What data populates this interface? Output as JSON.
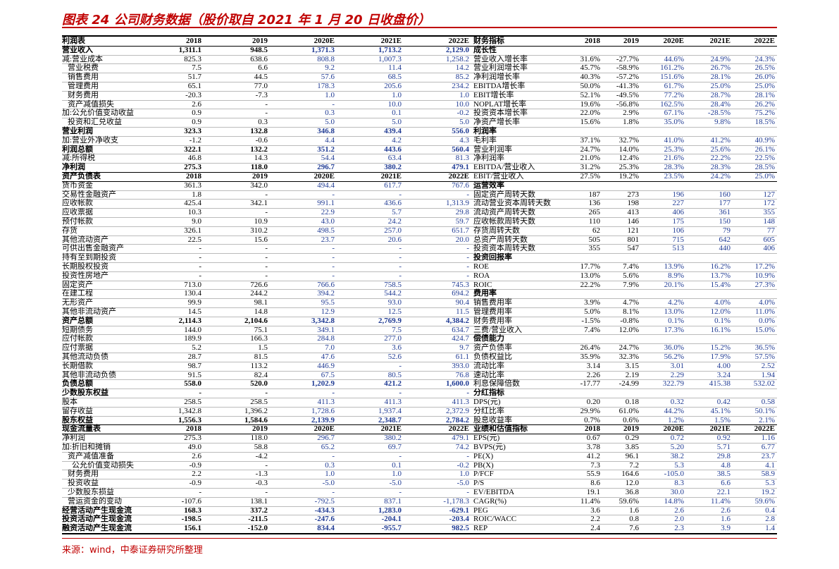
{
  "header": {
    "title": "图表 24 公司财务数据（股价取自 2021 年 1 月 20 日收盘价）"
  },
  "table": {
    "rows": [
      {
        "left": [
          "利润表",
          "2018",
          "2019",
          "2020E",
          "2021E",
          "2022E"
        ],
        "right": [
          "财务指标",
          "2018",
          "2019",
          "2020E",
          "2021E",
          "2022E"
        ]
      },
      {
        "left": [
          "营业收入",
          "1,311.1",
          "948.5",
          "1,371.3",
          "1,713.2",
          "2,129.0"
        ],
        "right": [
          "成长性"
        ]
      },
      {
        "left": [
          "减:营业成本",
          "825.3",
          "638.6",
          "808.8",
          "1,007.3",
          "1,258.2"
        ],
        "right": [
          "营业收入增长率",
          "31.6%",
          "-27.7%",
          "44.6%",
          "24.9%",
          "24.3%"
        ]
      },
      {
        "left": [
          "营业税费",
          "7.5",
          "6.6",
          "9.2",
          "11.4",
          "14.2"
        ],
        "right": [
          "营业利润增长率",
          "45.7%",
          "-58.9%",
          "161.2%",
          "26.7%",
          "26.5%"
        ]
      },
      {
        "left": [
          "销售费用",
          "51.7",
          "44.5",
          "57.6",
          "68.5",
          "85.2"
        ],
        "right": [
          "净利润增长率",
          "40.3%",
          "-57.2%",
          "151.6%",
          "28.1%",
          "26.0%"
        ]
      },
      {
        "left": [
          "管理费用",
          "65.1",
          "77.0",
          "178.3",
          "205.6",
          "234.2"
        ],
        "right": [
          "EBITDA增长率",
          "50.0%",
          "-41.3%",
          "61.7%",
          "25.0%",
          "25.0%"
        ]
      },
      {
        "left": [
          "财务费用",
          "-20.3",
          "-7.3",
          "1.0",
          "1.0",
          "1.0"
        ],
        "right": [
          "EBIT增长率",
          "52.1%",
          "-49.5%",
          "77.2%",
          "28.7%",
          "28.1%"
        ]
      },
      {
        "left": [
          "资产减值损失",
          "2.6",
          "-",
          "-",
          "10.0",
          "10.0"
        ],
        "right": [
          "NOPLAT增长率",
          "19.6%",
          "-56.8%",
          "162.5%",
          "28.4%",
          "26.2%"
        ]
      },
      {
        "left": [
          "加:公允价值变动收益",
          "0.9",
          "-",
          "0.3",
          "0.1",
          "-0.2"
        ],
        "right": [
          "投资资本增长率",
          "22.0%",
          "2.9%",
          "67.1%",
          "-28.5%",
          "75.2%"
        ]
      },
      {
        "left": [
          "投资和汇兑收益",
          "0.9",
          "0.3",
          "5.0",
          "5.0",
          "5.0"
        ],
        "right": [
          "净资产增长率",
          "15.6%",
          "1.8%",
          "35.0%",
          "9.8%",
          "18.5%"
        ]
      },
      {
        "left": [
          "营业利润",
          "323.3",
          "132.8",
          "346.8",
          "439.4",
          "556.0"
        ],
        "right": [
          "利润率"
        ]
      },
      {
        "left": [
          "加:营业外净收支",
          "-1.2",
          "-0.6",
          "4.4",
          "4.2",
          "4.3"
        ],
        "right": [
          "毛利率",
          "37.1%",
          "32.7%",
          "41.0%",
          "41.2%",
          "40.9%"
        ]
      },
      {
        "left": [
          "利润总额",
          "322.1",
          "132.2",
          "351.2",
          "443.6",
          "560.4"
        ],
        "right": [
          "营业利润率",
          "24.7%",
          "14.0%",
          "25.3%",
          "25.6%",
          "26.1%"
        ]
      },
      {
        "left": [
          "减:所得税",
          "46.8",
          "14.3",
          "54.4",
          "63.4",
          "81.3"
        ],
        "right": [
          "净利润率",
          "21.0%",
          "12.4%",
          "21.6%",
          "22.2%",
          "22.5%"
        ]
      },
      {
        "left": [
          "净利润",
          "275.3",
          "118.0",
          "296.7",
          "380.2",
          "479.1"
        ],
        "right": [
          "EBITDA/营业收入",
          "31.2%",
          "25.3%",
          "28.3%",
          "28.3%",
          "28.5%"
        ]
      },
      {
        "left": [
          "资产负债表",
          "2018",
          "2019",
          "2020E",
          "2021E",
          "2022E"
        ],
        "right": [
          "EBIT/营业收入",
          "27.5%",
          "19.2%",
          "23.5%",
          "24.2%",
          "25.0%"
        ]
      },
      {
        "left": [
          "货币资金",
          "361.3",
          "342.0",
          "494.4",
          "617.7",
          "767.6"
        ],
        "right": [
          "运营效率"
        ]
      },
      {
        "left": [
          "交易性金融资产",
          "1.8",
          "-",
          "-",
          "-",
          "-"
        ],
        "right": [
          "固定资产周转天数",
          "187",
          "273",
          "196",
          "160",
          "127"
        ]
      },
      {
        "left": [
          "应收帐款",
          "425.4",
          "342.1",
          "991.1",
          "436.6",
          "1,313.9"
        ],
        "right": [
          "流动营业资本周转天数",
          "136",
          "198",
          "227",
          "177",
          "172"
        ]
      },
      {
        "left": [
          "应收票据",
          "10.3",
          "-",
          "22.9",
          "5.7",
          "29.8"
        ],
        "right": [
          "流动资产周转天数",
          "265",
          "413",
          "406",
          "361",
          "355"
        ]
      },
      {
        "left": [
          "预付帐款",
          "9.0",
          "10.9",
          "43.0",
          "24.2",
          "59.7"
        ],
        "right": [
          "应收帐款周转天数",
          "110",
          "146",
          "175",
          "150",
          "148"
        ]
      },
      {
        "left": [
          "存货",
          "326.1",
          "310.2",
          "498.5",
          "257.0",
          "651.7"
        ],
        "right": [
          "存货周转天数",
          "62",
          "121",
          "106",
          "79",
          "77"
        ]
      },
      {
        "left": [
          "其他流动资产",
          "22.5",
          "15.6",
          "23.7",
          "20.6",
          "20.0"
        ],
        "right": [
          "总资产周转天数",
          "505",
          "801",
          "715",
          "642",
          "605"
        ]
      },
      {
        "left": [
          "可供出售金融资产",
          "-",
          "-",
          "-",
          "-",
          "-"
        ],
        "right": [
          "投资资本周转天数",
          "355",
          "547",
          "513",
          "440",
          "406"
        ]
      },
      {
        "left": [
          "持有至到期投资",
          "-",
          "-",
          "-",
          "-",
          "-"
        ],
        "right": [
          "投资回报率"
        ]
      },
      {
        "left": [
          "长期股权投资",
          "-",
          "-",
          "-",
          "-",
          "-"
        ],
        "right": [
          "ROE",
          "17.7%",
          "7.4%",
          "13.9%",
          "16.2%",
          "17.2%"
        ]
      },
      {
        "left": [
          "投资性房地产",
          "-",
          "-",
          "-",
          "-",
          "-"
        ],
        "right": [
          "ROA",
          "13.0%",
          "5.6%",
          "8.9%",
          "13.7%",
          "10.9%"
        ]
      },
      {
        "left": [
          "固定资产",
          "713.0",
          "726.6",
          "766.6",
          "758.5",
          "745.3"
        ],
        "right": [
          "ROIC",
          "22.2%",
          "7.9%",
          "20.1%",
          "15.4%",
          "27.3%"
        ]
      },
      {
        "left": [
          "在建工程",
          "130.4",
          "244.2",
          "394.2",
          "544.2",
          "694.2"
        ],
        "right": [
          "费用率"
        ]
      },
      {
        "left": [
          "无形资产",
          "99.9",
          "98.1",
          "95.5",
          "93.0",
          "90.4"
        ],
        "right": [
          "销售费用率",
          "3.9%",
          "4.7%",
          "4.2%",
          "4.0%",
          "4.0%"
        ]
      },
      {
        "left": [
          "其他非流动资产",
          "14.5",
          "14.8",
          "12.9",
          "12.5",
          "11.5"
        ],
        "right": [
          "管理费用率",
          "5.0%",
          "8.1%",
          "13.0%",
          "12.0%",
          "11.0%"
        ]
      },
      {
        "left": [
          "资产总额",
          "2,114.3",
          "2,104.6",
          "3,342.8",
          "2,769.9",
          "4,384.2"
        ],
        "right": [
          "财务费用率",
          "-1.5%",
          "-0.8%",
          "0.1%",
          "0.1%",
          "0.0%"
        ]
      },
      {
        "left": [
          "短期债务",
          "144.0",
          "75.1",
          "349.1",
          "7.5",
          "634.7"
        ],
        "right": [
          "三费/营业收入",
          "7.4%",
          "12.0%",
          "17.3%",
          "16.1%",
          "15.0%"
        ]
      },
      {
        "left": [
          "应付帐款",
          "189.9",
          "166.3",
          "284.8",
          "277.0",
          "424.7"
        ],
        "right": [
          "偿债能力"
        ]
      },
      {
        "left": [
          "应付票据",
          "5.2",
          "1.5",
          "7.0",
          "3.6",
          "9.7"
        ],
        "right": [
          "资产负债率",
          "26.4%",
          "24.7%",
          "36.0%",
          "15.2%",
          "36.5%"
        ]
      },
      {
        "left": [
          "其他流动负债",
          "28.7",
          "81.5",
          "47.6",
          "52.6",
          "61.1"
        ],
        "right": [
          "负债权益比",
          "35.9%",
          "32.3%",
          "56.2%",
          "17.9%",
          "57.5%"
        ]
      },
      {
        "left": [
          "长期借款",
          "98.7",
          "113.2",
          "446.9",
          "-",
          "393.0"
        ],
        "right": [
          "流动比率",
          "3.14",
          "3.15",
          "3.01",
          "4.00",
          "2.52"
        ]
      },
      {
        "left": [
          "其他非流动负债",
          "91.5",
          "82.4",
          "67.5",
          "80.5",
          "76.8"
        ],
        "right": [
          "速动比率",
          "2.26",
          "2.19",
          "2.29",
          "3.24",
          "1.94"
        ]
      },
      {
        "left": [
          "负债总额",
          "558.0",
          "520.0",
          "1,202.9",
          "421.2",
          "1,600.0"
        ],
        "right": [
          "利息保障倍数",
          "-17.77",
          "-24.99",
          "322.79",
          "415.38",
          "532.02"
        ]
      },
      {
        "left": [
          "少数股东权益",
          "-",
          "-",
          "-",
          "-",
          "-"
        ],
        "right": [
          "分红指标"
        ]
      },
      {
        "left": [
          "股本",
          "258.5",
          "258.5",
          "411.3",
          "411.3",
          "411.3"
        ],
        "right": [
          "DPS(元)",
          "0.20",
          "0.18",
          "0.32",
          "0.42",
          "0.58"
        ]
      },
      {
        "left": [
          "留存收益",
          "1,342.8",
          "1,396.2",
          "1,728.6",
          "1,937.4",
          "2,372.9"
        ],
        "right": [
          "分红比率",
          "29.9%",
          "61.0%",
          "44.2%",
          "45.1%",
          "50.1%"
        ]
      },
      {
        "left": [
          "股东权益",
          "1,556.3",
          "1,584.6",
          "2,139.9",
          "2,348.7",
          "2,784.2"
        ],
        "right": [
          "股息收益率",
          "0.7%",
          "0.6%",
          "1.2%",
          "1.5%",
          "2.1%"
        ]
      },
      {
        "left": [
          "现金流量表",
          "2018",
          "2019",
          "2020E",
          "2021E",
          "2022E"
        ],
        "right": [
          "业绩和估值指标",
          "2018",
          "2019",
          "2020E",
          "2021E",
          "2022E"
        ]
      },
      {
        "left": [
          "净利润",
          "275.3",
          "118.0",
          "296.7",
          "380.2",
          "479.1"
        ],
        "right": [
          "EPS(元)",
          "0.67",
          "0.29",
          "0.72",
          "0.92",
          "1.16"
        ]
      },
      {
        "left": [
          "加:折旧和摊销",
          "49.0",
          "58.8",
          "65.2",
          "69.7",
          "74.2"
        ],
        "right": [
          "BVPS(元)",
          "3.78",
          "3.85",
          "5.20",
          "5.71",
          "6.77"
        ]
      },
      {
        "left": [
          "资产减值准备",
          "2.6",
          "-4.2",
          "-",
          "-",
          "-"
        ],
        "right": [
          "PE(X)",
          "41.2",
          "96.1",
          "38.2",
          "29.8",
          "23.7"
        ]
      },
      {
        "left": [
          "公允价值变动损失",
          "-0.9",
          "-",
          "0.3",
          "0.1",
          "-0.2"
        ],
        "right": [
          "PB(X)",
          "7.3",
          "7.2",
          "5.3",
          "4.8",
          "4.1"
        ]
      },
      {
        "left": [
          "财务费用",
          "2.2",
          "-1.3",
          "1.0",
          "1.0",
          "1.0"
        ],
        "right": [
          "P/FCF",
          "55.9",
          "164.6",
          "-105.0",
          "38.5",
          "58.9"
        ]
      },
      {
        "left": [
          "投资收益",
          "-0.9",
          "-0.3",
          "-5.0",
          "-5.0",
          "-5.0"
        ],
        "right": [
          "P/S",
          "8.6",
          "12.0",
          "8.3",
          "6.6",
          "5.3"
        ]
      },
      {
        "left": [
          "少数股东损益",
          "-",
          "-",
          "-",
          "-",
          "-"
        ],
        "right": [
          "EV/EBITDA",
          "19.1",
          "36.8",
          "30.0",
          "22.1",
          "19.2"
        ]
      },
      {
        "left": [
          "营运资金的变动",
          "-107.6",
          "138.1",
          "-792.5",
          "837.1",
          "-1,178.3"
        ],
        "right": [
          "CAGR(%)",
          "11.4%",
          "59.6%",
          "14.8%",
          "11.4%",
          "59.6%"
        ]
      },
      {
        "left": [
          "经营活动产生现金流",
          "168.3",
          "337.2",
          "-434.3",
          "1,283.0",
          "-629.1"
        ],
        "right": [
          "PEG",
          "3.6",
          "1.6",
          "2.6",
          "2.6",
          "0.4"
        ]
      },
      {
        "left": [
          "投资活动产生现金流",
          "-198.5",
          "-211.5",
          "-247.6",
          "-204.1",
          "-203.4"
        ],
        "right": [
          "ROIC/WACC",
          "2.2",
          "0.8",
          "2.0",
          "1.6",
          "2.8"
        ]
      },
      {
        "left": [
          "融资活动产生现金流",
          "156.1",
          "-152.0",
          "834.4",
          "-955.7",
          "982.5"
        ],
        "right": [
          "REP",
          "2.4",
          "7.6",
          "2.3",
          "3.9",
          "1.4"
        ]
      }
    ]
  },
  "footer": {
    "source": "来源：wind，中泰证券研究所整理"
  }
}
